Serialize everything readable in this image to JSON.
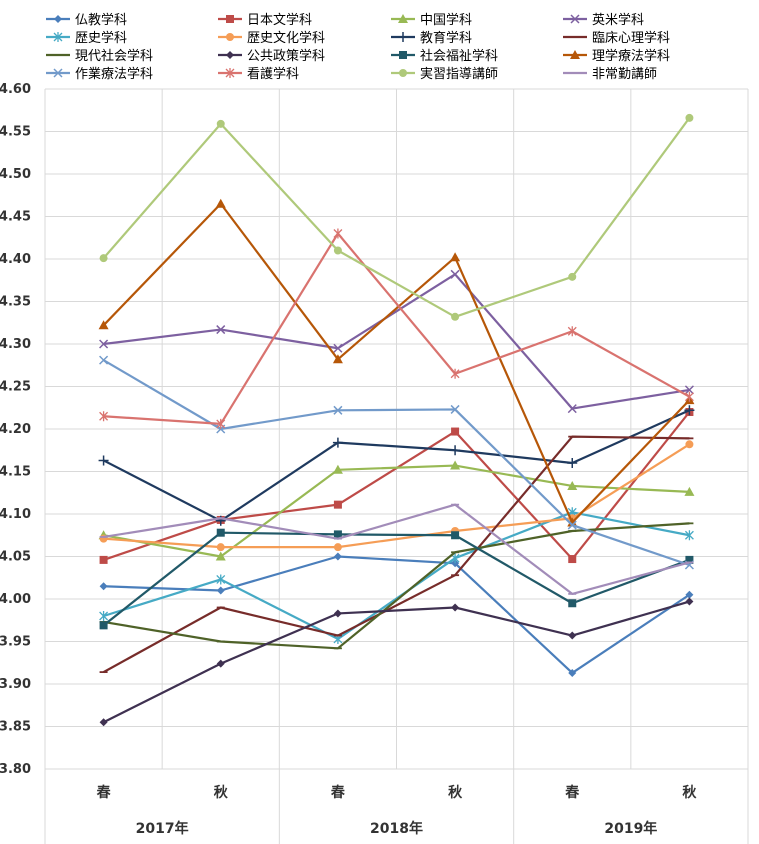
{
  "chart_data": {
    "type": "line",
    "title": "",
    "xlabel": "",
    "ylabel": "",
    "ylim": [
      3.8,
      4.6
    ],
    "ystep": 0.05,
    "y_ticks": [
      "4.60",
      "4.55",
      "4.50",
      "4.45",
      "4.40",
      "4.35",
      "4.30",
      "4.25",
      "4.20",
      "4.15",
      "4.10",
      "4.05",
      "4.00",
      "3.95",
      "3.90",
      "3.85",
      "3.80"
    ],
    "categories": [
      "春",
      "秋",
      "春",
      "秋",
      "春",
      "秋"
    ],
    "groups": [
      "2017年",
      "2018年",
      "2019年"
    ],
    "grid": true,
    "legend_position": "top",
    "series": [
      {
        "name": "仏教学科",
        "color": "#4a7ebb",
        "marker": "diamond",
        "values": [
          4.015,
          4.01,
          4.05,
          4.042,
          3.913,
          4.005
        ]
      },
      {
        "name": "日本文学科",
        "color": "#be4b48",
        "marker": "square",
        "values": [
          4.046,
          4.093,
          4.111,
          4.197,
          4.047,
          4.22
        ]
      },
      {
        "name": "中国学科",
        "color": "#98b954",
        "marker": "triangle",
        "values": [
          4.075,
          4.05,
          4.152,
          4.157,
          4.133,
          4.126
        ]
      },
      {
        "name": "英米学科",
        "color": "#7d60a0",
        "marker": "x",
        "values": [
          4.3,
          4.317,
          4.295,
          4.382,
          4.224,
          4.246
        ]
      },
      {
        "name": "歴史学科",
        "color": "#46aac5",
        "marker": "star",
        "values": [
          3.98,
          4.023,
          3.953,
          4.048,
          4.102,
          4.075
        ]
      },
      {
        "name": "歴史文化学科",
        "color": "#f59d56",
        "marker": "circle",
        "values": [
          4.071,
          4.061,
          4.061,
          4.08,
          4.095,
          4.182
        ]
      },
      {
        "name": "教育学科",
        "color": "#1f3a5f",
        "marker": "plus",
        "values": [
          4.163,
          4.092,
          4.184,
          4.175,
          4.16,
          4.222
        ]
      },
      {
        "name": "臨床心理学科",
        "color": "#772c2a",
        "marker": "dash",
        "values": [
          3.914,
          3.99,
          3.957,
          4.028,
          4.191,
          4.189
        ]
      },
      {
        "name": "現代社会学科",
        "color": "#4f6228",
        "marker": "dash",
        "values": [
          3.973,
          3.95,
          3.942,
          4.055,
          4.08,
          4.089
        ]
      },
      {
        "name": "公共政策学科",
        "color": "#3f3151",
        "marker": "diamond",
        "values": [
          3.855,
          3.924,
          3.983,
          3.99,
          3.957,
          3.997
        ]
      },
      {
        "name": "社会福祉学科",
        "color": "#215968",
        "marker": "square",
        "values": [
          3.969,
          4.078,
          4.076,
          4.075,
          3.995,
          4.046
        ]
      },
      {
        "name": "理学療法学科",
        "color": "#b65708",
        "marker": "triangle",
        "values": [
          4.322,
          4.465,
          4.282,
          4.402,
          4.09,
          4.234
        ]
      },
      {
        "name": "作業療法学科",
        "color": "#729aca",
        "marker": "x",
        "values": [
          4.281,
          4.2,
          4.222,
          4.223,
          4.087,
          4.04
        ]
      },
      {
        "name": "看護学科",
        "color": "#d9736f",
        "marker": "star",
        "values": [
          4.215,
          4.206,
          4.43,
          4.265,
          4.315,
          4.238
        ]
      },
      {
        "name": "実習指導講師",
        "color": "#afc97a",
        "marker": "circle",
        "values": [
          4.401,
          4.559,
          4.41,
          4.332,
          4.379,
          4.566
        ]
      },
      {
        "name": "非常勤講師",
        "color": "#a28cb9",
        "marker": "dash",
        "values": [
          4.073,
          4.095,
          4.071,
          4.111,
          4.006,
          4.043
        ]
      }
    ]
  }
}
